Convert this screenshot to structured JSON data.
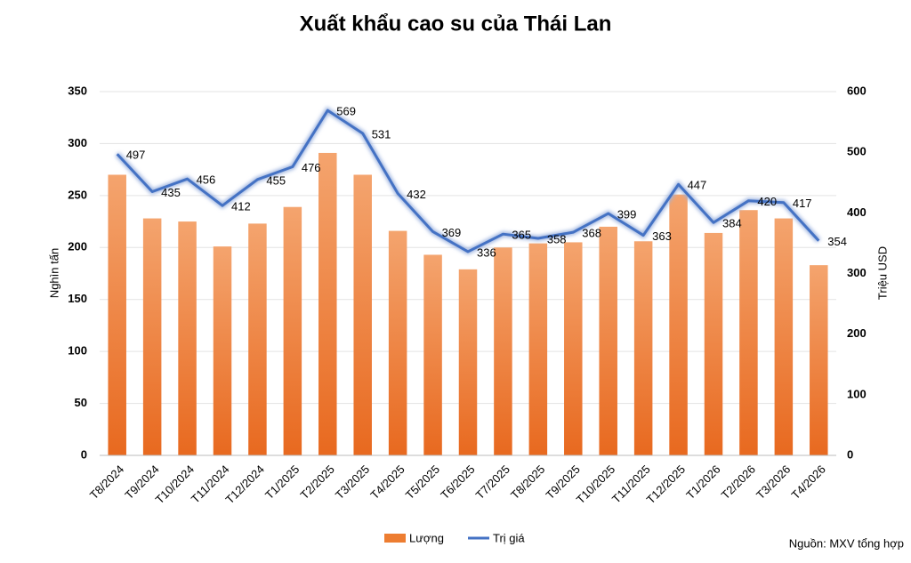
{
  "chart_data": {
    "type": "bar",
    "title": "Xuất khẩu cao su của Thái Lan",
    "y_label": "Nghìn tấn",
    "y2_label": "Triệu USD",
    "source": "Nguồn: MXV tổng hợp",
    "categories": [
      "T8/2024",
      "T9/2024",
      "T10/2024",
      "T11/2024",
      "T12/2024",
      "T1/2025",
      "T2/2025",
      "T3/2025",
      "T4/2025",
      "T5/2025",
      "T6/2025",
      "T7/2025",
      "T8/2025",
      "T9/2025",
      "T10/2025",
      "T11/2025",
      "T12/2025",
      "T1/2026",
      "T2/2026",
      "T3/2026",
      "T4/2026"
    ],
    "series": [
      {
        "name": "Lượng",
        "type": "bar",
        "color": "#ed7d31",
        "values": [
          270,
          228,
          225,
          201,
          223,
          239,
          291,
          270,
          216,
          193,
          179,
          200,
          204,
          205,
          220,
          206,
          251,
          214,
          236,
          228,
          183
        ]
      },
      {
        "name": "Trị giá",
        "type": "line",
        "axis": "y2",
        "color": "#4472c4",
        "values": [
          497,
          435,
          456,
          412,
          455,
          476,
          569,
          531,
          432,
          369,
          336,
          365,
          358,
          368,
          399,
          363,
          447,
          384,
          420,
          417,
          354
        ]
      }
    ],
    "ylim": [
      0,
      350
    ],
    "yticks": [
      0,
      50,
      100,
      150,
      200,
      250,
      300,
      350
    ],
    "y2lim": [
      0,
      600
    ],
    "y2ticks": [
      0,
      100,
      200,
      300,
      400,
      500,
      600
    ],
    "legend": "bottom"
  }
}
